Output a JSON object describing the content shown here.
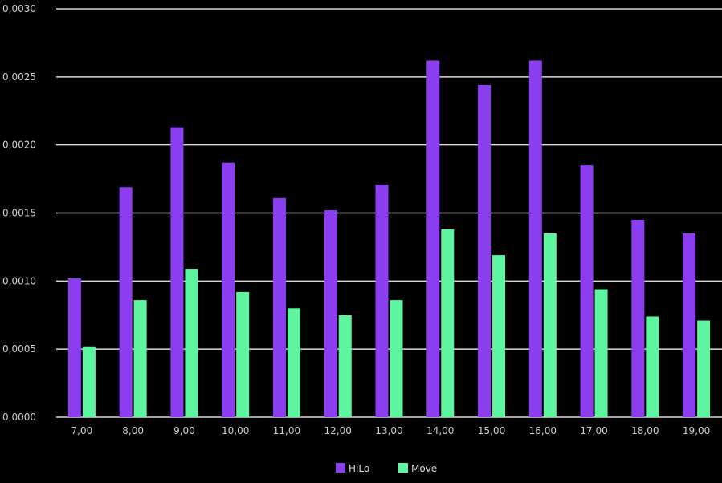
{
  "chart_data": {
    "type": "bar",
    "categories": [
      "7,00",
      "8,00",
      "9,00",
      "10,00",
      "11,00",
      "12,00",
      "13,00",
      "14,00",
      "15,00",
      "16,00",
      "17,00",
      "18,00",
      "19,00"
    ],
    "series": [
      {
        "name": "HiLo",
        "color": "#8b3ef0",
        "values": [
          0.00102,
          0.00169,
          0.00213,
          0.00187,
          0.00161,
          0.00152,
          0.00171,
          0.00262,
          0.00244,
          0.00262,
          0.00185,
          0.00145,
          0.00135
        ]
      },
      {
        "name": "Move",
        "color": "#5ff5a0",
        "values": [
          0.00052,
          0.00086,
          0.00109,
          0.00092,
          0.0008,
          0.00075,
          0.00086,
          0.00138,
          0.00119,
          0.00135,
          0.00094,
          0.00074,
          0.00071
        ]
      }
    ],
    "ylim": [
      0,
      0.003
    ],
    "y_ticks": [
      {
        "value": 0,
        "label": "0,0000"
      },
      {
        "value": 0.0005,
        "label": "0,0005"
      },
      {
        "value": 0.001,
        "label": "0,0010"
      },
      {
        "value": 0.0015,
        "label": "0,0015"
      },
      {
        "value": 0.002,
        "label": "0,0020"
      },
      {
        "value": 0.0025,
        "label": "0,0025"
      },
      {
        "value": 0.003,
        "label": "0,0030"
      }
    ],
    "grid": true,
    "legend_position": "bottom-center",
    "title": "",
    "xlabel": "",
    "ylabel": ""
  }
}
